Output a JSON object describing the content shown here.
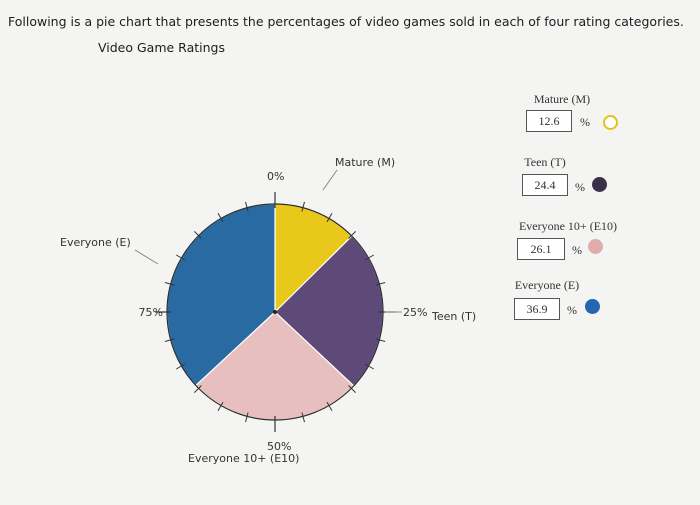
{
  "intro_text": "Following is a pie chart that presents the percentages of video games sold in each of four rating categories.",
  "chart_data": {
    "type": "pie",
    "title": "Video Game Ratings",
    "slices": [
      {
        "name": "Mature (M)",
        "label": "Mature (M)",
        "value": 12.6,
        "color": "#e8c81a"
      },
      {
        "name": "Teen (T)",
        "label": "Teen (T)",
        "value": 24.4,
        "color": "#5e4a78"
      },
      {
        "name": "Everyone 10+ (E10)",
        "label": "Everyone 10+ (E10)",
        "value": 26.1,
        "color": "#e8bfbf"
      },
      {
        "name": "Everyone (E)",
        "label": "Everyone (E)",
        "value": 36.9,
        "color": "#2a6aa3"
      }
    ],
    "percent_ticks": [
      "0%",
      "25%",
      "50%",
      "75%"
    ],
    "percent_symbol": "%"
  }
}
